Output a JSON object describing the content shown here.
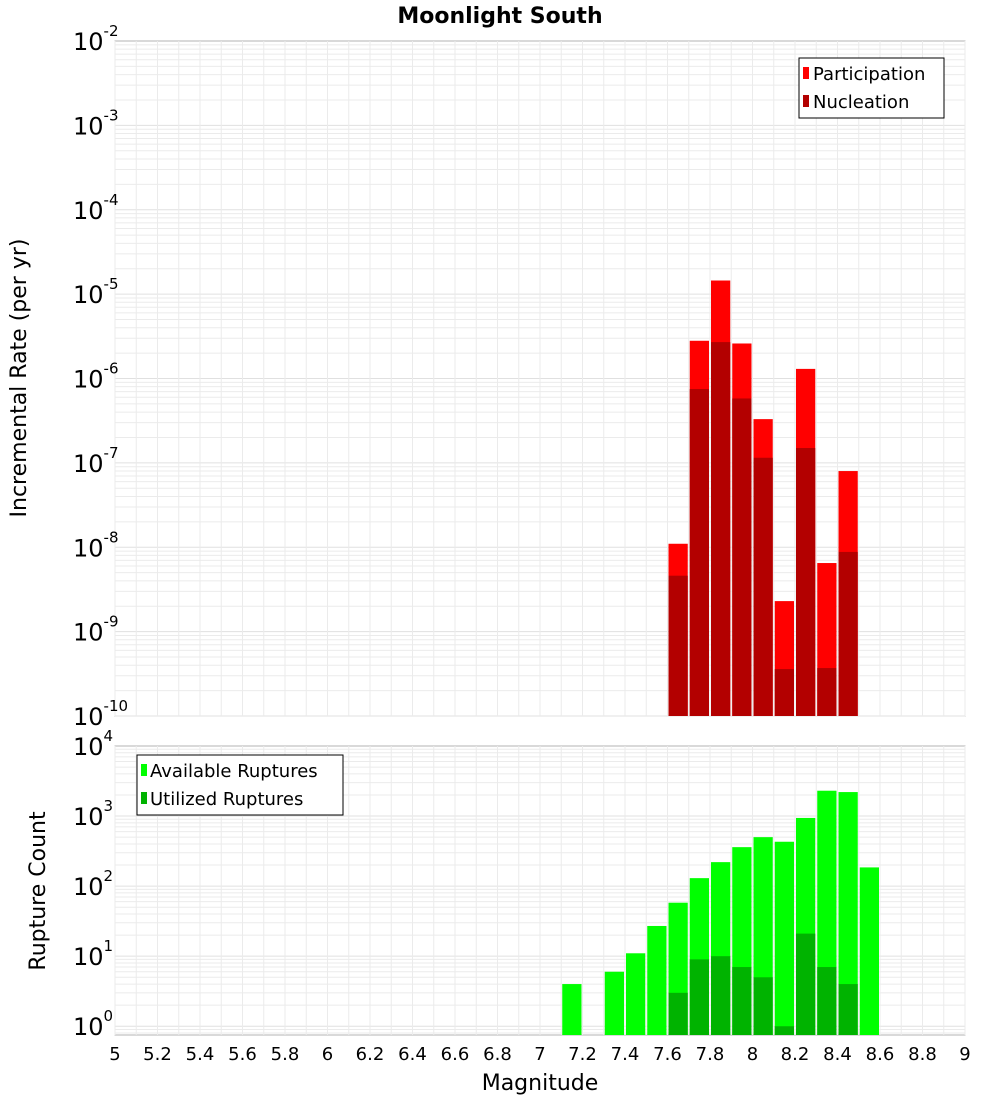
{
  "title": "Moonlight South",
  "xlabel": "Magnitude",
  "x_ticks": [
    "5",
    "5.2",
    "5.4",
    "5.6",
    "5.8",
    "6",
    "6.2",
    "6.4",
    "6.6",
    "6.8",
    "7",
    "7.2",
    "7.4",
    "7.6",
    "7.8",
    "8",
    "8.2",
    "8.4",
    "8.6",
    "8.8",
    "9"
  ],
  "colors": {
    "participation": "#ff0000",
    "nucleation": "#b30000",
    "available": "#00ff00",
    "utilized": "#00b300",
    "grid": "#ebebeb",
    "axis": "#b3b3b3"
  },
  "chart_data": [
    {
      "type": "bar",
      "title": "Moonlight South",
      "ylabel": "Incremental Rate (per yr)",
      "yscale": "log",
      "ylim": [
        1e-10,
        0.01
      ],
      "xlim": [
        5,
        9
      ],
      "y_ticks": [
        {
          "base": "10",
          "exp": "-2"
        },
        {
          "base": "10",
          "exp": "-3"
        },
        {
          "base": "10",
          "exp": "-4"
        },
        {
          "base": "10",
          "exp": "-5"
        },
        {
          "base": "10",
          "exp": "-6"
        },
        {
          "base": "10",
          "exp": "-7"
        },
        {
          "base": "10",
          "exp": "-8"
        },
        {
          "base": "10",
          "exp": "-9"
        },
        {
          "base": "10",
          "exp": "-10"
        }
      ],
      "legend": [
        "Participation",
        "Nucleation"
      ],
      "legend_position": "top-right",
      "x": [
        7.65,
        7.75,
        7.85,
        7.95,
        8.05,
        8.15,
        8.25,
        8.35,
        8.45
      ],
      "series": [
        {
          "name": "Participation",
          "values": [
            1.1e-08,
            2.8e-06,
            1.45e-05,
            2.6e-06,
            3.3e-07,
            2.3e-09,
            1.3e-06,
            6.5e-09,
            8e-08
          ]
        },
        {
          "name": "Nucleation",
          "values": [
            4.6e-09,
            7.5e-07,
            2.7e-06,
            5.8e-07,
            1.15e-07,
            3.6e-10,
            1.5e-07,
            3.7e-10,
            8.8e-09
          ]
        }
      ]
    },
    {
      "type": "bar",
      "ylabel": "Rupture Count",
      "yscale": "log",
      "ylim": [
        0.75,
        10000
      ],
      "xlim": [
        5,
        9
      ],
      "y_ticks": [
        {
          "base": "10",
          "exp": "4"
        },
        {
          "base": "10",
          "exp": "3"
        },
        {
          "base": "10",
          "exp": "2"
        },
        {
          "base": "10",
          "exp": "1"
        },
        {
          "base": "10",
          "exp": "0"
        }
      ],
      "legend": [
        "Available Ruptures",
        "Utilized Ruptures"
      ],
      "legend_position": "top-left",
      "x": [
        7.15,
        7.35,
        7.45,
        7.55,
        7.65,
        7.75,
        7.85,
        7.95,
        8.05,
        8.15,
        8.25,
        8.35,
        8.45,
        8.55
      ],
      "series": [
        {
          "name": "Available Ruptures",
          "values": [
            4,
            6,
            11,
            27,
            58,
            130,
            220,
            360,
            500,
            430,
            940,
            2300,
            2200,
            185
          ]
        },
        {
          "name": "Utilized Ruptures",
          "values": [
            null,
            null,
            null,
            null,
            3,
            9,
            10,
            7,
            5,
            1,
            21,
            7,
            4,
            null
          ]
        }
      ]
    }
  ]
}
